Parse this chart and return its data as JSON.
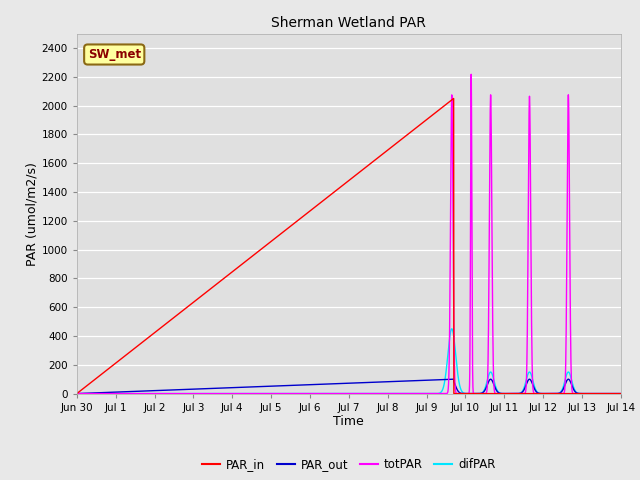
{
  "title": "Sherman Wetland PAR",
  "ylabel": "PAR (umol/m2/s)",
  "xlabel": "Time",
  "fig_bg_color": "#e8e8e8",
  "plot_bg_color": "#e0e0e0",
  "annotation_text": "SW_met",
  "annotation_bg": "#ffffa0",
  "annotation_border": "#8B6914",
  "annotation_text_color": "#8B0000",
  "ylim": [
    0,
    2500
  ],
  "yticks": [
    0,
    200,
    400,
    600,
    800,
    1000,
    1200,
    1400,
    1600,
    1800,
    2000,
    2200,
    2400
  ],
  "xtick_labels": [
    "Jun 30",
    "Jul 1",
    "Jul 2",
    "Jul 3",
    "Jul 4",
    "Jul 5",
    "Jul 6",
    "Jul 7",
    "Jul 8",
    "Jul 9",
    "Jul 10",
    "Jul 11",
    "Jul 12",
    "Jul 13",
    "Jul 14"
  ],
  "PAR_in_color": "#ff0000",
  "PAR_out_color": "#0000cd",
  "totPAR_color": "#ff00ff",
  "difPAR_color": "#00e5ff",
  "line_width": 1.0,
  "figsize": [
    6.4,
    4.8
  ],
  "dpi": 100
}
